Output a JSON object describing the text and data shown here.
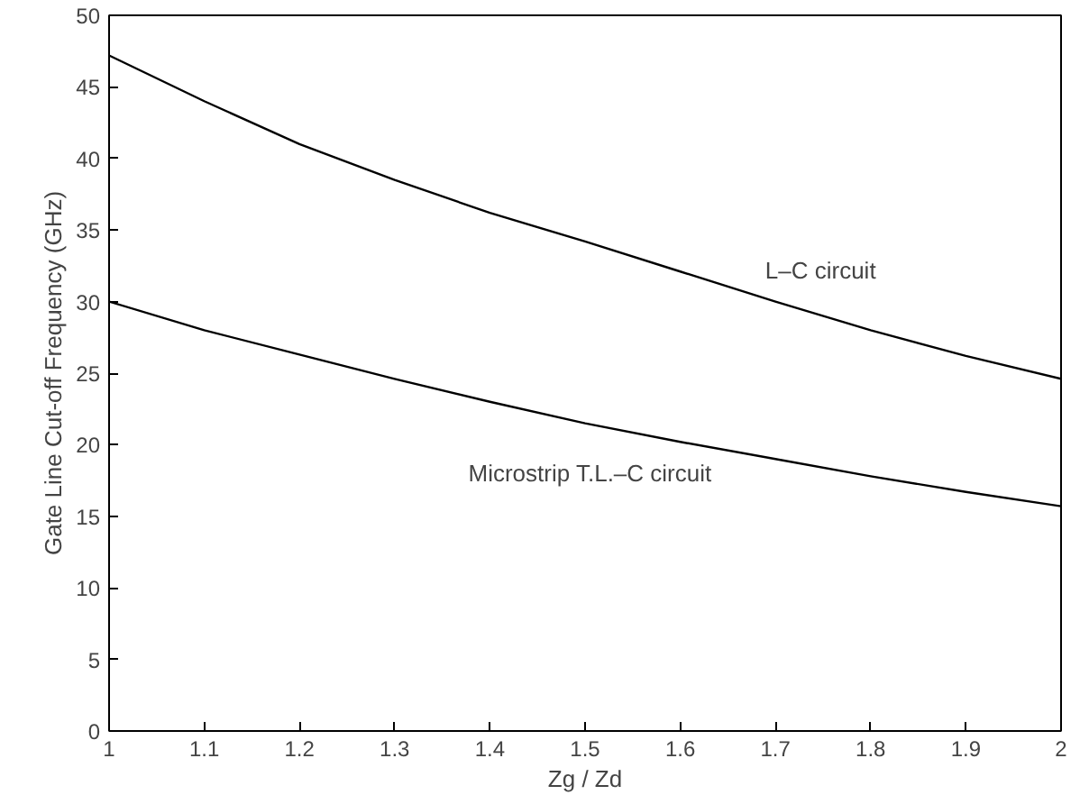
{
  "chart_data": {
    "type": "line",
    "xlabel": "Zg / Zd",
    "ylabel": "Gate Line Cut-off Frequency (GHz)",
    "x": [
      1.0,
      1.1,
      1.2,
      1.3,
      1.4,
      1.5,
      1.6,
      1.7,
      1.8,
      1.9,
      2.0
    ],
    "series": [
      {
        "color": "#000000",
        "values": [
          47.2,
          44.0,
          41.0,
          38.5,
          36.2,
          34.2,
          32.1,
          30.0,
          28.0,
          26.2,
          24.6
        ]
      },
      {
        "color": "#000000",
        "values": [
          30.0,
          28.0,
          26.3,
          24.6,
          23.0,
          21.5,
          20.2,
          19.0,
          17.8,
          16.7,
          15.7
        ]
      }
    ],
    "annotations": [
      {
        "text": "L–C circuit",
        "x": 1.7,
        "y": 30.0
      },
      {
        "text": "Microstrip T.L.–C circuit",
        "x": 1.6,
        "y": 20.2
      }
    ],
    "xlim": [
      1,
      2
    ],
    "ylim": [
      0,
      50
    ],
    "xticks": [
      1,
      1.1,
      1.2,
      1.3,
      1.4,
      1.5,
      1.6,
      1.7,
      1.8,
      1.9,
      2
    ],
    "yticks": [
      0,
      5,
      10,
      15,
      20,
      25,
      30,
      35,
      40,
      45,
      50
    ],
    "grid": false,
    "marker": "none",
    "line_style": "solid"
  }
}
